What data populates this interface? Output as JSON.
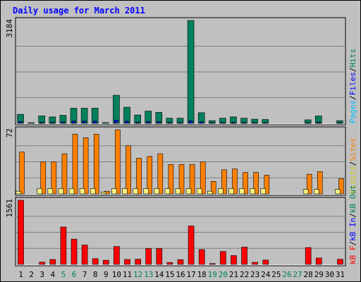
{
  "chart_data": {
    "type": "bar",
    "title": "Daily usage for March 2011",
    "days": [
      "1",
      "2",
      "3",
      "4",
      "5",
      "6",
      "7",
      "8",
      "9",
      "10",
      "11",
      "12",
      "13",
      "14",
      "15",
      "16",
      "17",
      "18",
      "19",
      "20",
      "21",
      "22",
      "23",
      "24",
      "25",
      "26",
      "27",
      "28",
      "29",
      "30",
      "31"
    ],
    "weekend_days": [
      "5",
      "6",
      "12",
      "13",
      "19",
      "20",
      "26",
      "27"
    ],
    "panels": [
      {
        "name": "hits-files-pages",
        "max_label": "3184",
        "ymax": 3184,
        "legend": [
          {
            "text": "Pages",
            "color": "#00c0ff"
          },
          {
            "text": "/",
            "color": "#000000"
          },
          {
            "text": "Files",
            "color": "#0000ff"
          },
          {
            "text": "/",
            "color": "#000000"
          },
          {
            "text": "Hits",
            "color": "#00805c"
          }
        ],
        "series": [
          {
            "name": "Hits",
            "color": "#00805c",
            "values": [
              280,
              15,
              230,
              200,
              250,
              470,
              470,
              470,
              25,
              870,
              500,
              260,
              380,
              340,
              160,
              160,
              3184,
              330,
              85,
              160,
              200,
              160,
              130,
              120,
              0,
              0,
              0,
              110,
              230,
              0,
              85
            ]
          },
          {
            "name": "Files",
            "color": "#0000ff",
            "values": [
              60,
              0,
              35,
              35,
              45,
              70,
              70,
              70,
              0,
              100,
              70,
              40,
              60,
              55,
              30,
              30,
              80,
              50,
              15,
              30,
              35,
              30,
              25,
              25,
              0,
              0,
              0,
              20,
              40,
              0,
              15
            ]
          },
          {
            "name": "Pages",
            "color": "#00c0ff",
            "values": [
              25,
              0,
              15,
              15,
              20,
              30,
              30,
              30,
              0,
              40,
              30,
              20,
              25,
              25,
              15,
              15,
              35,
              20,
              8,
              15,
              15,
              15,
              10,
              10,
              0,
              0,
              0,
              10,
              15,
              0,
              8
            ]
          }
        ]
      },
      {
        "name": "visits-sites",
        "max_label": "72",
        "ymax": 72,
        "legend": [
          {
            "text": "Visits",
            "color": "#d0d000"
          },
          {
            "text": "/",
            "color": "#000000"
          },
          {
            "text": "Sites",
            "color": "#ff8000"
          }
        ],
        "series": [
          {
            "name": "Sites",
            "color": "#ff8000",
            "values": [
              47,
              0,
              36,
              36,
              45,
              67,
              63,
              67,
              3,
              72,
              54,
              40,
              42,
              45,
              33,
              33,
              33,
              36,
              14,
              27,
              28,
              24,
              24,
              21,
              0,
              0,
              0,
              22,
              25,
              0,
              17
            ]
          },
          {
            "name": "Visits",
            "color": "#f0f080",
            "values": [
              3,
              0,
              6,
              6,
              6,
              6,
              6,
              6,
              2,
              6,
              6,
              6,
              6,
              6,
              6,
              6,
              6,
              6,
              3,
              6,
              6,
              6,
              6,
              6,
              0,
              0,
              0,
              5,
              5,
              0,
              5
            ]
          }
        ]
      },
      {
        "name": "kbytes",
        "max_label": "1561",
        "ymax": 1561,
        "legend": [
          {
            "text": "kB F",
            "color": "#ff0000"
          },
          {
            "text": "/",
            "color": "#000000"
          },
          {
            "text": "kB In",
            "color": "#0000ff"
          },
          {
            "text": "/",
            "color": "#000000"
          },
          {
            "text": "kB Out",
            "color": "#00805c"
          }
        ],
        "series": [
          {
            "name": "kB F",
            "color": "#ff0000",
            "values": [
              1561,
              0,
              55,
              120,
              910,
              615,
              470,
              140,
              100,
              435,
              120,
              125,
              385,
              385,
              45,
              115,
              935,
              360,
              20,
              315,
              215,
              420,
              50,
              105,
              0,
              0,
              0,
              410,
              155,
              0,
              125
            ]
          }
        ]
      }
    ]
  }
}
